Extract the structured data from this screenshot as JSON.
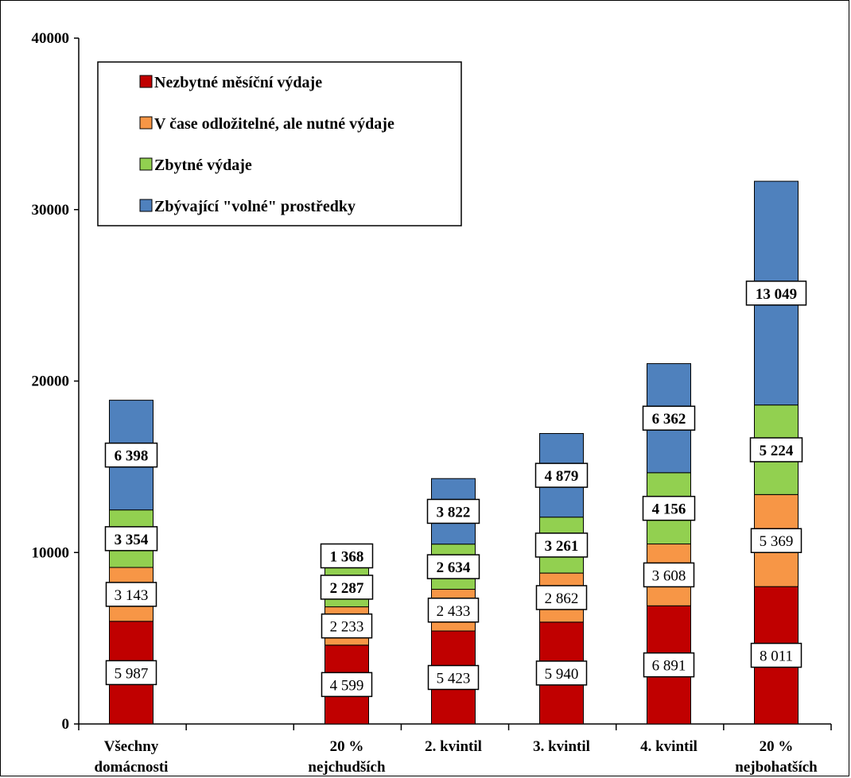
{
  "chart_data": {
    "type": "bar",
    "stacked": true,
    "title": "",
    "xlabel": "",
    "ylabel": "",
    "ylim": [
      0,
      40000
    ],
    "yticks": [
      0,
      10000,
      20000,
      30000,
      40000
    ],
    "ytick_labels": [
      "0",
      "10000",
      "20000",
      "30000",
      "40000"
    ],
    "grid": false,
    "legend_position": "top-left",
    "categories": [
      [
        "Všechny",
        "domácnosti"
      ],
      [
        "",
        ""
      ],
      [
        "20 %",
        "nejchudších"
      ],
      [
        "2. kvintil",
        ""
      ],
      [
        "3. kvintil",
        ""
      ],
      [
        "4. kvintil",
        ""
      ],
      [
        "20 %",
        "nejbohatších"
      ]
    ],
    "series": [
      {
        "name": "Nezbytné měsíční výdaje",
        "color": "#c00000",
        "values": [
          5987,
          null,
          4599,
          5423,
          5940,
          6891,
          8011
        ],
        "labels": [
          "5 987",
          "",
          "4 599",
          "5 423",
          "5 940",
          "6 891",
          "8 011"
        ],
        "label_bold": false
      },
      {
        "name": "V čase odložitelné, ale nutné výdaje",
        "color": "#f79646",
        "values": [
          3143,
          null,
          2233,
          2433,
          2862,
          3608,
          5369
        ],
        "labels": [
          "3 143",
          "",
          "2 233",
          "2 433",
          "2 862",
          "3 608",
          "5 369"
        ],
        "label_bold": false
      },
      {
        "name": "Zbytné výdaje",
        "color": "#92d050",
        "values": [
          3354,
          null,
          2287,
          2634,
          3261,
          4156,
          5224
        ],
        "labels": [
          "3 354",
          "",
          "2 287",
          "2 634",
          "3 261",
          "4 156",
          "5 224"
        ],
        "label_bold": true
      },
      {
        "name": "Zbývající \"volné\" prostředky",
        "color": "#4f81bd",
        "values": [
          6398,
          null,
          1368,
          3822,
          4879,
          6362,
          13049
        ],
        "labels": [
          "6 398",
          "",
          "1 368",
          "3 822",
          "4 879",
          "6 362",
          "13 049"
        ],
        "label_bold": true
      }
    ]
  }
}
